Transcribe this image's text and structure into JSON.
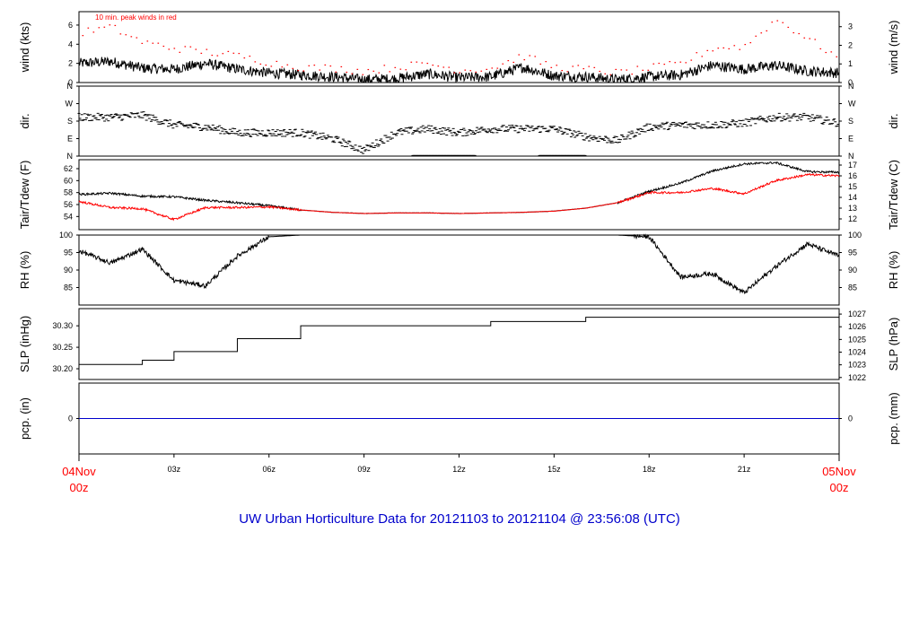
{
  "footer_title": "UW Urban Horticulture Data for 20121103  to  20121104 @ 23:56:08  (UTC)",
  "colors": {
    "primary": "#000000",
    "secondary": "#ff0000",
    "precip": "#0000cc",
    "footer": "#0000cc"
  },
  "chart_data": [
    {
      "id": "wind",
      "type": "line",
      "ylabel_left": "wind (kts)",
      "ylabel_right": "wind (m/s)",
      "ylim": [
        0,
        7.4
      ],
      "yticks_left": [
        0,
        2,
        4,
        6
      ],
      "yticks_right": [
        0,
        1,
        2,
        3
      ],
      "right_to_left_factor": 1.944,
      "annotation": "10 min. peak winds in red",
      "series": [
        {
          "color": "black",
          "line": "solid",
          "x": [
            0,
            1,
            2,
            3,
            4,
            5,
            6,
            7,
            8,
            9,
            10,
            11,
            12,
            13,
            14,
            15,
            16,
            17,
            18,
            19,
            20,
            21,
            22,
            23,
            24
          ],
          "y": [
            2.0,
            2.2,
            1.5,
            1.4,
            2.0,
            1.4,
            1.0,
            0.8,
            0.6,
            0.3,
            0.4,
            0.9,
            0.5,
            0.6,
            1.6,
            0.7,
            0.6,
            0.3,
            0.6,
            0.8,
            1.8,
            1.4,
            1.8,
            1.2,
            1.0
          ]
        },
        {
          "color": "red",
          "line": "dotted",
          "x": [
            0,
            1,
            2,
            3,
            4,
            5,
            6,
            7,
            8,
            9,
            10,
            11,
            12,
            13,
            14,
            15,
            16,
            17,
            18,
            19,
            20,
            21,
            22,
            23,
            24
          ],
          "y": [
            5.2,
            5.8,
            4.2,
            3.6,
            3.2,
            2.8,
            2.1,
            1.6,
            1.5,
            1.2,
            1.6,
            2.0,
            1.3,
            1.5,
            2.8,
            1.6,
            1.4,
            1.0,
            1.5,
            2.0,
            3.6,
            3.8,
            6.6,
            4.6,
            2.5
          ]
        }
      ]
    },
    {
      "id": "dir",
      "type": "scatter",
      "ylabel_left": "dir.",
      "ylabel_right": "dir.",
      "ylim": [
        0,
        360
      ],
      "ytick_values": [
        0,
        90,
        180,
        270,
        360
      ],
      "ytick_labels": [
        "N",
        "E",
        "S",
        "W",
        "N"
      ],
      "series": [
        {
          "color": "black",
          "x": [
            0,
            1,
            2,
            3,
            4,
            5,
            6,
            7,
            8,
            9,
            10,
            11,
            12,
            13,
            14,
            15,
            16,
            17,
            18,
            19,
            20,
            21,
            22,
            23,
            24
          ],
          "y": [
            200,
            200,
            210,
            160,
            150,
            120,
            120,
            120,
            90,
            30,
            120,
            140,
            120,
            140,
            140,
            140,
            100,
            80,
            150,
            160,
            160,
            170,
            200,
            200,
            170
          ]
        }
      ]
    },
    {
      "id": "temp",
      "type": "line",
      "ylabel_left": "Tair/Tdew (F)",
      "ylabel_right": "Tair/Tdew (C)",
      "ylim": [
        51.8,
        63.5
      ],
      "yticks_left": [
        54,
        56,
        58,
        60,
        62
      ],
      "yticks_right": [
        12,
        13,
        14,
        15,
        16,
        17
      ],
      "series": [
        {
          "color": "black",
          "x": [
            0,
            1,
            2,
            3,
            4,
            5,
            6,
            7,
            8,
            9,
            10,
            11,
            12,
            13,
            14,
            15,
            16,
            17,
            18,
            19,
            20,
            21,
            22,
            23,
            24
          ],
          "y": [
            57.7,
            57.9,
            57.4,
            57.3,
            56.7,
            56.3,
            55.8,
            55.1,
            54.7,
            54.5,
            54.6,
            54.6,
            54.5,
            54.6,
            54.7,
            54.9,
            55.4,
            56.3,
            58.2,
            59.6,
            61.6,
            62.8,
            63.0,
            61.5,
            61.4
          ]
        },
        {
          "color": "red",
          "x": [
            0,
            1,
            2,
            3,
            4,
            5,
            6,
            7,
            8,
            9,
            10,
            11,
            12,
            13,
            14,
            15,
            16,
            17,
            18,
            19,
            20,
            21,
            22,
            23,
            24
          ],
          "y": [
            56.5,
            55.5,
            55.3,
            53.5,
            55.5,
            55.5,
            55.6,
            55.1,
            54.7,
            54.5,
            54.6,
            54.6,
            54.5,
            54.6,
            54.7,
            54.9,
            55.4,
            56.3,
            58.0,
            58.0,
            58.7,
            57.8,
            60.0,
            61.0,
            60.8
          ]
        }
      ]
    },
    {
      "id": "rh",
      "type": "line",
      "ylabel_left": "RH (%)",
      "ylabel_right": "RH (%)",
      "ylim": [
        80,
        100
      ],
      "yticks_left": [
        85,
        90,
        95,
        100
      ],
      "yticks_right": [
        85,
        90,
        95,
        100
      ],
      "series": [
        {
          "color": "black",
          "x": [
            0,
            1,
            2,
            3,
            4,
            5,
            6,
            7,
            8,
            9,
            10,
            11,
            12,
            13,
            14,
            15,
            16,
            17,
            18,
            19,
            20,
            21,
            22,
            23,
            24
          ],
          "y": [
            95.5,
            92.0,
            96.0,
            87.0,
            85.5,
            94.0,
            99.5,
            100,
            100,
            100,
            100,
            100,
            100,
            100,
            100,
            100,
            100,
            100,
            99.5,
            88.0,
            89.0,
            83.5,
            91.0,
            97.5,
            94.0
          ]
        }
      ]
    },
    {
      "id": "slp",
      "type": "line",
      "ylabel_left": "SLP (inHg)",
      "ylabel_right": "SLP (hPa)",
      "ylim": [
        30.175,
        30.34
      ],
      "yticks_left": [
        30.2,
        30.25,
        30.3
      ],
      "yticks_right": [
        1022,
        1023,
        1024,
        1025,
        1026,
        1027
      ],
      "series": [
        {
          "color": "black",
          "x": [
            0,
            1,
            2,
            3,
            4,
            5,
            6,
            7,
            8,
            9,
            10,
            11,
            12,
            13,
            14,
            15,
            16,
            17,
            18,
            19,
            20,
            21,
            22,
            23,
            24
          ],
          "y": [
            30.21,
            30.21,
            30.22,
            30.24,
            30.24,
            30.27,
            30.27,
            30.3,
            30.3,
            30.3,
            30.3,
            30.3,
            30.3,
            30.31,
            30.31,
            30.31,
            30.32,
            30.32,
            30.32,
            30.32,
            30.32,
            30.32,
            30.32,
            30.32,
            30.3
          ]
        }
      ]
    },
    {
      "id": "pcp",
      "type": "line",
      "ylabel_left": "pcp. (in)",
      "ylabel_right": "pcp. (mm)",
      "ylim": [
        -1,
        1
      ],
      "yticks_left": [
        0
      ],
      "yticks_right": [
        0
      ],
      "series": [
        {
          "color": "blue",
          "x": [
            0,
            24
          ],
          "y": [
            0,
            0
          ]
        }
      ]
    }
  ],
  "time_axis": {
    "xlim_hours": [
      0,
      24
    ],
    "ticks": [
      {
        "h": 3,
        "label": "03z"
      },
      {
        "h": 6,
        "label": "06z"
      },
      {
        "h": 9,
        "label": "09z"
      },
      {
        "h": 12,
        "label": "12z"
      },
      {
        "h": 15,
        "label": "15z"
      },
      {
        "h": 18,
        "label": "18z"
      },
      {
        "h": 21,
        "label": "21z"
      }
    ],
    "start_line1": "04Nov",
    "start_line2": "00z",
    "end_line1": "05Nov",
    "end_line2": "00z"
  }
}
